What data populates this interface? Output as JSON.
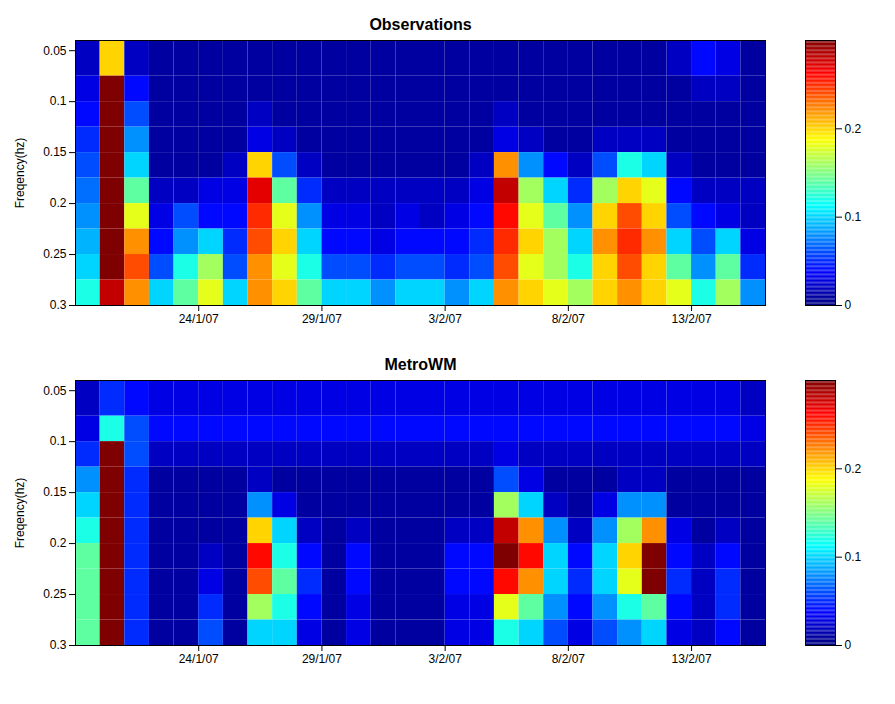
{
  "chart_data": [
    {
      "type": "heatmap",
      "title": "Observations",
      "y_label": "Freqency(hz)",
      "x_bins": [
        "2007-01-19",
        "2007-01-20",
        "2007-01-21",
        "2007-01-22",
        "2007-01-23",
        "2007-01-24",
        "2007-01-25",
        "2007-01-26",
        "2007-01-27",
        "2007-01-28",
        "2007-01-29",
        "2007-01-30",
        "2007-01-31",
        "2007-02-01",
        "2007-02-02",
        "2007-02-03",
        "2007-02-04",
        "2007-02-05",
        "2007-02-06",
        "2007-02-07",
        "2007-02-08",
        "2007-02-09",
        "2007-02-10",
        "2007-02-11",
        "2007-02-12",
        "2007-02-13",
        "2007-02-14",
        "2007-02-15",
        "2007-02-16"
      ],
      "y_bins": [
        0.04,
        0.075,
        0.1,
        0.125,
        0.15,
        0.175,
        0.2,
        0.225,
        0.25,
        0.275,
        0.3
      ],
      "values": [
        [
          0.02,
          0.2,
          0.02,
          0.01,
          0.01,
          0.01,
          0.01,
          0.01,
          0.01,
          0.01,
          0.01,
          0.01,
          0.01,
          0.01,
          0.01,
          0.01,
          0.01,
          0.01,
          0.01,
          0.01,
          0.01,
          0.01,
          0.01,
          0.01,
          0.02,
          0.04,
          0.03,
          0.01
        ],
        [
          0.03,
          0.3,
          0.04,
          0.01,
          0.01,
          0.01,
          0.01,
          0.01,
          0.01,
          0.01,
          0.01,
          0.01,
          0.01,
          0.01,
          0.01,
          0.01,
          0.01,
          0.01,
          0.01,
          0.01,
          0.01,
          0.01,
          0.01,
          0.01,
          0.01,
          0.02,
          0.02,
          0.01
        ],
        [
          0.04,
          0.3,
          0.06,
          0.01,
          0.01,
          0.01,
          0.01,
          0.02,
          0.01,
          0.01,
          0.01,
          0.01,
          0.01,
          0.01,
          0.01,
          0.01,
          0.01,
          0.02,
          0.01,
          0.01,
          0.01,
          0.01,
          0.01,
          0.01,
          0.01,
          0.01,
          0.01,
          0.01
        ],
        [
          0.05,
          0.3,
          0.08,
          0.01,
          0.01,
          0.01,
          0.01,
          0.03,
          0.02,
          0.01,
          0.01,
          0.01,
          0.01,
          0.01,
          0.01,
          0.01,
          0.01,
          0.03,
          0.02,
          0.01,
          0.01,
          0.02,
          0.02,
          0.02,
          0.01,
          0.01,
          0.01,
          0.01
        ],
        [
          0.06,
          0.3,
          0.1,
          0.01,
          0.01,
          0.01,
          0.02,
          0.2,
          0.06,
          0.02,
          0.01,
          0.01,
          0.01,
          0.01,
          0.01,
          0.01,
          0.02,
          0.22,
          0.08,
          0.04,
          0.02,
          0.06,
          0.12,
          0.1,
          0.02,
          0.01,
          0.01,
          0.01
        ],
        [
          0.07,
          0.3,
          0.14,
          0.02,
          0.02,
          0.03,
          0.03,
          0.27,
          0.14,
          0.05,
          0.02,
          0.02,
          0.02,
          0.02,
          0.02,
          0.02,
          0.03,
          0.28,
          0.16,
          0.1,
          0.05,
          0.16,
          0.2,
          0.18,
          0.04,
          0.02,
          0.02,
          0.02
        ],
        [
          0.08,
          0.3,
          0.18,
          0.03,
          0.06,
          0.04,
          0.04,
          0.25,
          0.18,
          0.08,
          0.03,
          0.03,
          0.02,
          0.03,
          0.02,
          0.03,
          0.04,
          0.26,
          0.18,
          0.14,
          0.08,
          0.2,
          0.24,
          0.2,
          0.06,
          0.04,
          0.03,
          0.02
        ],
        [
          0.09,
          0.3,
          0.22,
          0.04,
          0.08,
          0.1,
          0.05,
          0.24,
          0.2,
          0.1,
          0.04,
          0.04,
          0.03,
          0.04,
          0.04,
          0.04,
          0.05,
          0.25,
          0.2,
          0.16,
          0.1,
          0.22,
          0.25,
          0.22,
          0.1,
          0.06,
          0.1,
          0.03
        ],
        [
          0.1,
          0.3,
          0.24,
          0.06,
          0.12,
          0.16,
          0.06,
          0.22,
          0.18,
          0.12,
          0.06,
          0.06,
          0.05,
          0.06,
          0.06,
          0.05,
          0.06,
          0.24,
          0.18,
          0.16,
          0.12,
          0.2,
          0.24,
          0.2,
          0.14,
          0.08,
          0.14,
          0.05
        ],
        [
          0.12,
          0.28,
          0.22,
          0.1,
          0.14,
          0.18,
          0.1,
          0.22,
          0.2,
          0.14,
          0.1,
          0.1,
          0.08,
          0.1,
          0.1,
          0.08,
          0.1,
          0.22,
          0.2,
          0.18,
          0.16,
          0.2,
          0.22,
          0.2,
          0.18,
          0.12,
          0.16,
          0.08
        ]
      ],
      "xlim": [
        "2007-01-19",
        "2007-02-16"
      ],
      "xticks": [
        {
          "value": "2007-01-24",
          "label": "24/1/07"
        },
        {
          "value": "2007-01-29",
          "label": "29/1/07"
        },
        {
          "value": "2007-02-03",
          "label": "3/2/07"
        },
        {
          "value": "2007-02-08",
          "label": "8/2/07"
        },
        {
          "value": "2007-02-13",
          "label": "13/2/07"
        }
      ],
      "ylim": [
        0.3,
        0.04
      ],
      "yticks": [
        0.05,
        0.1,
        0.15,
        0.2,
        0.25,
        0.3
      ],
      "color_range": [
        0,
        0.3
      ],
      "color_ticks": [
        0,
        0.1,
        0.2
      ]
    },
    {
      "type": "heatmap",
      "title": "MetroWM",
      "y_label": "Freqency(hz)",
      "x_bins": [
        "2007-01-19",
        "2007-01-20",
        "2007-01-21",
        "2007-01-22",
        "2007-01-23",
        "2007-01-24",
        "2007-01-25",
        "2007-01-26",
        "2007-01-27",
        "2007-01-28",
        "2007-01-29",
        "2007-01-30",
        "2007-01-31",
        "2007-02-01",
        "2007-02-02",
        "2007-02-03",
        "2007-02-04",
        "2007-02-05",
        "2007-02-06",
        "2007-02-07",
        "2007-02-08",
        "2007-02-09",
        "2007-02-10",
        "2007-02-11",
        "2007-02-12",
        "2007-02-13",
        "2007-02-14",
        "2007-02-15",
        "2007-02-16"
      ],
      "y_bins": [
        0.04,
        0.075,
        0.1,
        0.125,
        0.15,
        0.175,
        0.2,
        0.225,
        0.25,
        0.275,
        0.3
      ],
      "values": [
        [
          0.02,
          0.05,
          0.04,
          0.03,
          0.03,
          0.03,
          0.03,
          0.03,
          0.03,
          0.03,
          0.03,
          0.03,
          0.03,
          0.03,
          0.03,
          0.03,
          0.03,
          0.03,
          0.03,
          0.03,
          0.03,
          0.03,
          0.03,
          0.03,
          0.03,
          0.03,
          0.03,
          0.02
        ],
        [
          0.03,
          0.12,
          0.06,
          0.04,
          0.04,
          0.04,
          0.04,
          0.04,
          0.04,
          0.04,
          0.04,
          0.04,
          0.04,
          0.04,
          0.04,
          0.04,
          0.04,
          0.04,
          0.04,
          0.04,
          0.04,
          0.04,
          0.04,
          0.04,
          0.04,
          0.04,
          0.04,
          0.03
        ],
        [
          0.05,
          0.3,
          0.06,
          0.02,
          0.02,
          0.02,
          0.02,
          0.02,
          0.02,
          0.02,
          0.02,
          0.02,
          0.02,
          0.02,
          0.02,
          0.02,
          0.02,
          0.03,
          0.02,
          0.02,
          0.02,
          0.02,
          0.02,
          0.02,
          0.02,
          0.02,
          0.02,
          0.02
        ],
        [
          0.08,
          0.3,
          0.05,
          0.01,
          0.01,
          0.01,
          0.01,
          0.02,
          0.01,
          0.01,
          0.01,
          0.01,
          0.01,
          0.01,
          0.01,
          0.01,
          0.01,
          0.06,
          0.03,
          0.01,
          0.01,
          0.01,
          0.02,
          0.02,
          0.01,
          0.01,
          0.01,
          0.01
        ],
        [
          0.1,
          0.3,
          0.05,
          0.01,
          0.01,
          0.01,
          0.01,
          0.08,
          0.03,
          0.01,
          0.01,
          0.01,
          0.01,
          0.01,
          0.01,
          0.01,
          0.01,
          0.16,
          0.1,
          0.02,
          0.01,
          0.03,
          0.08,
          0.08,
          0.01,
          0.01,
          0.01,
          0.01
        ],
        [
          0.12,
          0.3,
          0.05,
          0.01,
          0.01,
          0.01,
          0.01,
          0.2,
          0.1,
          0.02,
          0.01,
          0.02,
          0.01,
          0.01,
          0.01,
          0.02,
          0.02,
          0.28,
          0.22,
          0.08,
          0.02,
          0.08,
          0.16,
          0.22,
          0.03,
          0.01,
          0.02,
          0.01
        ],
        [
          0.14,
          0.3,
          0.05,
          0.01,
          0.01,
          0.02,
          0.01,
          0.26,
          0.12,
          0.04,
          0.01,
          0.04,
          0.01,
          0.01,
          0.01,
          0.04,
          0.04,
          0.3,
          0.26,
          0.1,
          0.04,
          0.1,
          0.2,
          0.3,
          0.04,
          0.02,
          0.04,
          0.01
        ],
        [
          0.14,
          0.3,
          0.05,
          0.01,
          0.01,
          0.03,
          0.01,
          0.24,
          0.14,
          0.05,
          0.01,
          0.04,
          0.01,
          0.01,
          0.01,
          0.04,
          0.04,
          0.26,
          0.22,
          0.1,
          0.05,
          0.1,
          0.18,
          0.3,
          0.05,
          0.02,
          0.05,
          0.01
        ],
        [
          0.14,
          0.3,
          0.05,
          0.01,
          0.01,
          0.05,
          0.01,
          0.16,
          0.12,
          0.04,
          0.01,
          0.03,
          0.01,
          0.01,
          0.01,
          0.03,
          0.03,
          0.18,
          0.14,
          0.08,
          0.04,
          0.08,
          0.12,
          0.14,
          0.04,
          0.02,
          0.05,
          0.01
        ],
        [
          0.14,
          0.3,
          0.05,
          0.01,
          0.01,
          0.06,
          0.01,
          0.1,
          0.1,
          0.03,
          0.01,
          0.03,
          0.01,
          0.01,
          0.01,
          0.03,
          0.03,
          0.12,
          0.1,
          0.06,
          0.03,
          0.06,
          0.08,
          0.1,
          0.03,
          0.02,
          0.04,
          0.01
        ]
      ],
      "xlim": [
        "2007-01-19",
        "2007-02-16"
      ],
      "xticks": [
        {
          "value": "2007-01-24",
          "label": "24/1/07"
        },
        {
          "value": "2007-01-29",
          "label": "29/1/07"
        },
        {
          "value": "2007-02-03",
          "label": "3/2/07"
        },
        {
          "value": "2007-02-08",
          "label": "8/2/07"
        },
        {
          "value": "2007-02-13",
          "label": "13/2/07"
        }
      ],
      "ylim": [
        0.3,
        0.04
      ],
      "yticks": [
        0.05,
        0.1,
        0.15,
        0.2,
        0.25,
        0.3
      ],
      "color_range": [
        0,
        0.3
      ],
      "color_ticks": [
        0,
        0.1,
        0.2
      ]
    }
  ]
}
